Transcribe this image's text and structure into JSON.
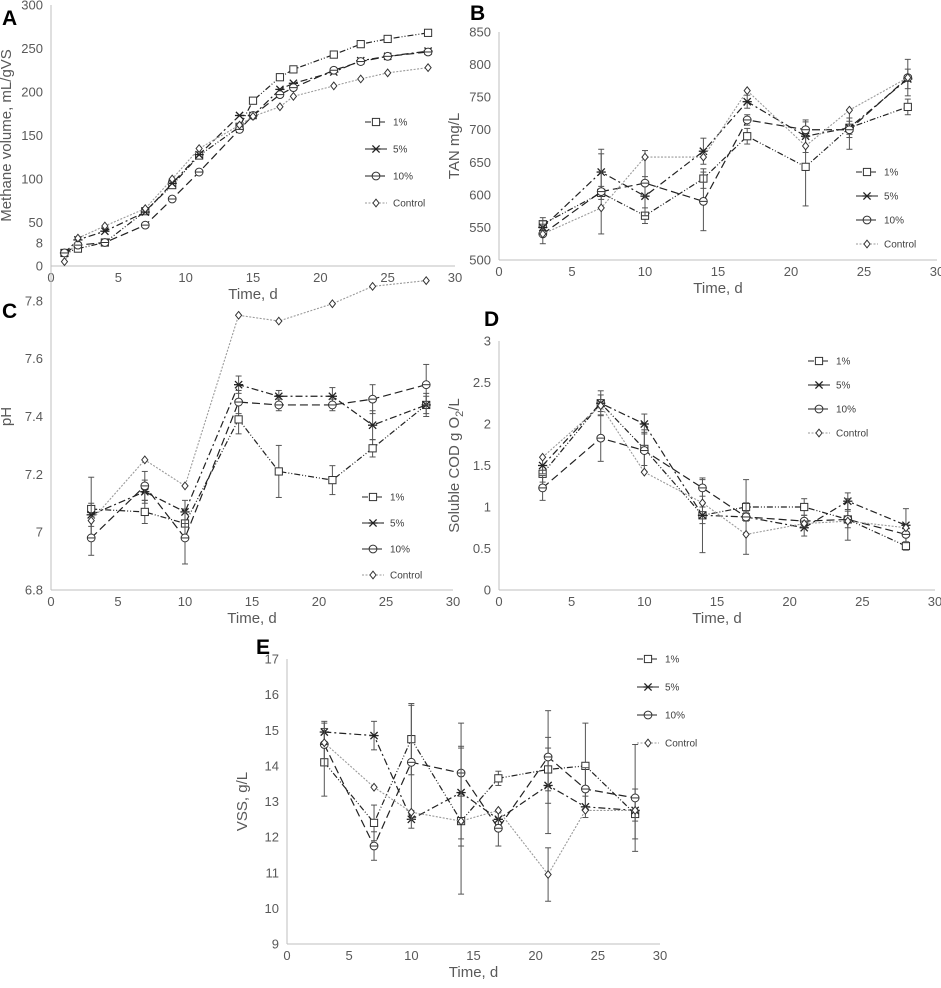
{
  "chart_data": [
    {
      "panel": "A",
      "type": "line",
      "xlabel": "Time, d",
      "ylabel": "Methane volume, mL/gVS",
      "xlim": [
        0,
        30
      ],
      "ylim": [
        0,
        300
      ],
      "xticks": [
        0,
        5,
        10,
        15,
        20,
        25,
        30
      ],
      "yticks": [
        0,
        50,
        100,
        150,
        200,
        250,
        300
      ],
      "legend": "right-middle",
      "series": [
        {
          "name": "1%",
          "marker": "square",
          "dash": "6,2,1,2,1,2",
          "x": [
            1,
            2,
            4,
            7,
            9,
            11,
            14,
            15,
            17,
            18,
            21,
            23,
            25,
            28
          ],
          "y": [
            15,
            20,
            27,
            63,
            93,
            127,
            160,
            190,
            217,
            226,
            243,
            255,
            261,
            268
          ]
        },
        {
          "name": "5%",
          "marker": "x",
          "dash": "7,3,2,3",
          "x": [
            1,
            2,
            4,
            7,
            9,
            11,
            14,
            15,
            17,
            18,
            21,
            23,
            25,
            28
          ],
          "y": [
            15,
            30,
            40,
            62,
            95,
            128,
            173,
            173,
            203,
            210,
            223,
            236,
            241,
            247
          ]
        },
        {
          "name": "10%",
          "marker": "circle",
          "dash": "8,4",
          "x": [
            1,
            2,
            4,
            7,
            9,
            11,
            14,
            15,
            17,
            18,
            21,
            23,
            25,
            28
          ],
          "y": [
            15,
            24,
            27,
            47,
            77,
            108,
            157,
            173,
            197,
            205,
            225,
            235,
            241,
            246
          ]
        },
        {
          "name": "Control",
          "marker": "diamond",
          "dash": "2,1.5",
          "x": [
            1,
            2,
            4,
            7,
            9,
            11,
            14,
            15,
            17,
            18,
            21,
            23,
            25,
            28
          ],
          "y": [
            5,
            32,
            46,
            66,
            100,
            135,
            162,
            172,
            183,
            195,
            207,
            215,
            222,
            228
          ]
        }
      ]
    },
    {
      "panel": "B",
      "type": "line",
      "xlabel": "Time, d",
      "ylabel": "TAN mg/L",
      "xlim": [
        0,
        30
      ],
      "ylim": [
        500,
        850
      ],
      "xticks": [
        0,
        5,
        10,
        15,
        20,
        25,
        30
      ],
      "yticks": [
        500,
        550,
        600,
        650,
        700,
        750,
        800,
        850
      ],
      "legend": "bottom-right",
      "series": [
        {
          "name": "1%",
          "marker": "square",
          "dash": "6,2,1,2,1,2",
          "x": [
            3,
            7,
            10,
            14,
            17,
            21,
            24,
            28
          ],
          "y": [
            555,
            603,
            568,
            625,
            690,
            643,
            703,
            735
          ],
          "err": [
            10,
            10,
            12,
            15,
            12,
            60,
            15,
            12
          ]
        },
        {
          "name": "5%",
          "marker": "x",
          "dash": "7,3,2,3",
          "x": [
            3,
            7,
            10,
            14,
            17,
            21,
            24,
            28
          ],
          "y": [
            550,
            635,
            598,
            667,
            743,
            690,
            703,
            778
          ],
          "err": [
            10,
            28,
            30,
            20,
            10,
            25,
            10,
            15
          ]
        },
        {
          "name": "10%",
          "marker": "circle",
          "dash": "8,4",
          "x": [
            3,
            7,
            10,
            14,
            17,
            21,
            24,
            28
          ],
          "y": [
            540,
            605,
            618,
            590,
            715,
            700,
            700,
            780
          ],
          "err": [
            15,
            65,
            50,
            45,
            8,
            12,
            30,
            28
          ]
        },
        {
          "name": "Control",
          "marker": "diamond",
          "dash": "2,1.5",
          "x": [
            3,
            7,
            10,
            14,
            17,
            21,
            24,
            28
          ],
          "y": [
            540,
            580,
            658,
            658,
            760,
            675,
            730,
            780
          ],
          "err": [
            0,
            0,
            0,
            0,
            0,
            0,
            0,
            0
          ]
        }
      ]
    },
    {
      "panel": "C",
      "type": "line",
      "xlabel": "Time, d",
      "ylabel": "pH",
      "xlim": [
        0,
        30
      ],
      "ylim": [
        6.8,
        8.0
      ],
      "xticks": [
        0,
        5,
        10,
        15,
        20,
        25,
        30
      ],
      "yticks": [
        6.8,
        7.0,
        7.2,
        7.4,
        7.6,
        7.8,
        8.0
      ],
      "ytick_labels": [
        "6.8",
        "7",
        "7.2",
        "7.4",
        "7.6",
        "7.8",
        "8"
      ],
      "legend": "bottom-right",
      "series": [
        {
          "name": "1%",
          "marker": "square",
          "dash": "6,2,1,2,1,2",
          "x": [
            3,
            7,
            10,
            14,
            17,
            21,
            24,
            28
          ],
          "y": [
            7.08,
            7.07,
            7.03,
            7.39,
            7.21,
            7.18,
            7.29,
            7.44
          ],
          "err": [
            0.11,
            0.04,
            0.05,
            0.05,
            0.09,
            0.05,
            0.03,
            0.04
          ]
        },
        {
          "name": "5%",
          "marker": "x",
          "dash": "7,3,2,3",
          "x": [
            3,
            7,
            10,
            14,
            17,
            21,
            24,
            28
          ],
          "y": [
            7.06,
            7.14,
            7.07,
            7.51,
            7.47,
            7.47,
            7.37,
            7.44
          ],
          "err": [
            0.04,
            0.04,
            0.04,
            0.03,
            0.02,
            0.03,
            0.05,
            0.03
          ]
        },
        {
          "name": "10%",
          "marker": "circle",
          "dash": "8,4",
          "x": [
            3,
            7,
            10,
            14,
            17,
            21,
            24,
            28
          ],
          "y": [
            6.98,
            7.16,
            6.98,
            7.45,
            7.44,
            7.44,
            7.46,
            7.51
          ],
          "err": [
            0.06,
            0.05,
            0.09,
            0.04,
            0.02,
            0.02,
            0.05,
            0.07
          ]
        },
        {
          "name": "Control",
          "marker": "diamond",
          "dash": "2,1.5",
          "x": [
            3,
            7,
            10,
            14,
            17,
            21,
            24,
            28
          ],
          "y": [
            7.04,
            7.25,
            7.16,
            7.75,
            7.73,
            7.79,
            7.85,
            7.87
          ],
          "err": [
            0,
            0,
            0,
            0,
            0,
            0,
            0,
            0
          ]
        }
      ]
    },
    {
      "panel": "D",
      "type": "line",
      "xlabel": "Time, d",
      "ylabel": "Soluble COD g O2/L",
      "xlim": [
        0,
        30
      ],
      "ylim": [
        0,
        3
      ],
      "xticks": [
        0,
        5,
        10,
        15,
        20,
        25,
        30
      ],
      "yticks": [
        0,
        0.5,
        1,
        1.5,
        2,
        2.5,
        3
      ],
      "ytick_labels": [
        "0",
        "0.5",
        "1",
        "1.5",
        "2",
        "2.5",
        "3"
      ],
      "legend": "top-right",
      "series": [
        {
          "name": "1%",
          "marker": "square",
          "dash": "6,2,1,2,1,2",
          "x": [
            3,
            7,
            10,
            14,
            17,
            21,
            24,
            28
          ],
          "y": [
            1.4,
            2.25,
            1.7,
            0.9,
            1.0,
            1.0,
            0.85,
            0.53
          ],
          "err": [
            0.1,
            0.15,
            0.2,
            0.1,
            0.05,
            0.1,
            0.1,
            0.05
          ]
        },
        {
          "name": "5%",
          "marker": "x",
          "dash": "7,3,2,3",
          "x": [
            3,
            7,
            10,
            14,
            17,
            21,
            24,
            28
          ],
          "y": [
            1.5,
            2.25,
            2.0,
            0.9,
            0.88,
            0.75,
            1.07,
            0.78
          ],
          "err": [
            0.1,
            0.1,
            0.12,
            0.45,
            0.05,
            0.1,
            0.1,
            0.2
          ]
        },
        {
          "name": "10%",
          "marker": "circle",
          "dash": "8,4",
          "x": [
            3,
            7,
            10,
            14,
            17,
            21,
            24,
            28
          ],
          "y": [
            1.23,
            1.83,
            1.68,
            1.23,
            0.88,
            0.83,
            0.85,
            0.67
          ],
          "err": [
            0.15,
            0.28,
            0.25,
            0.1,
            0.45,
            0.07,
            0.25,
            0.1
          ]
        },
        {
          "name": "Control",
          "marker": "diamond",
          "dash": "2,1.5",
          "x": [
            3,
            7,
            10,
            14,
            17,
            21,
            24,
            28
          ],
          "y": [
            1.6,
            2.22,
            1.42,
            1.05,
            0.67,
            0.8,
            0.83,
            0.75
          ],
          "err": [
            0,
            0,
            0,
            0,
            0,
            0,
            0,
            0
          ]
        }
      ]
    },
    {
      "panel": "E",
      "type": "line",
      "xlabel": "Time, d",
      "ylabel": "VSS, g/L",
      "xlim": [
        0,
        30
      ],
      "ylim": [
        9,
        17
      ],
      "xticks": [
        0,
        5,
        10,
        15,
        20,
        25,
        30
      ],
      "yticks": [
        9,
        10,
        11,
        12,
        13,
        14,
        15,
        16,
        17
      ],
      "legend": "top-right",
      "series": [
        {
          "name": "1%",
          "marker": "square",
          "dash": "6,2,1,2,1,2",
          "x": [
            3,
            7,
            10,
            14,
            17,
            21,
            24,
            28
          ],
          "y": [
            14.1,
            12.4,
            14.75,
            12.45,
            13.65,
            13.9,
            14.0,
            12.65
          ],
          "err": [
            0.95,
            0.5,
            1.0,
            0.7,
            0.2,
            0.6,
            1.2,
            0.7
          ]
        },
        {
          "name": "5%",
          "marker": "x",
          "dash": "7,3,2,3",
          "x": [
            3,
            7,
            10,
            14,
            17,
            21,
            24,
            28
          ],
          "y": [
            14.95,
            14.85,
            12.5,
            13.25,
            12.5,
            13.45,
            12.85,
            12.75
          ],
          "err": [
            0.3,
            0.4,
            0.25,
            1.3,
            0.2,
            1.35,
            0.3,
            0.3
          ]
        },
        {
          "name": "10%",
          "marker": "circle",
          "dash": "8,4",
          "x": [
            3,
            7,
            10,
            14,
            17,
            21,
            24,
            28
          ],
          "y": [
            14.6,
            11.75,
            14.1,
            13.8,
            12.25,
            14.25,
            13.35,
            13.1
          ],
          "err": [
            0.6,
            0.4,
            1.6,
            1.4,
            0.5,
            1.3,
            0.6,
            1.5
          ]
        },
        {
          "name": "Control",
          "marker": "diamond",
          "dash": "2,1.5",
          "x": [
            3,
            7,
            10,
            14,
            17,
            21,
            24,
            28
          ],
          "y": [
            14.65,
            13.4,
            12.7,
            12.45,
            12.75,
            10.95,
            12.75,
            12.75
          ],
          "err": [
            0,
            0,
            0,
            2.05,
            0,
            0.75,
            0,
            0
          ]
        }
      ]
    }
  ],
  "ylabel_subscripts": {
    "D": {
      "before": "Soluble COD g O",
      "sub": "2",
      "after": "/L"
    }
  },
  "panel_labels": [
    "A",
    "B",
    "C",
    "D",
    "E"
  ]
}
